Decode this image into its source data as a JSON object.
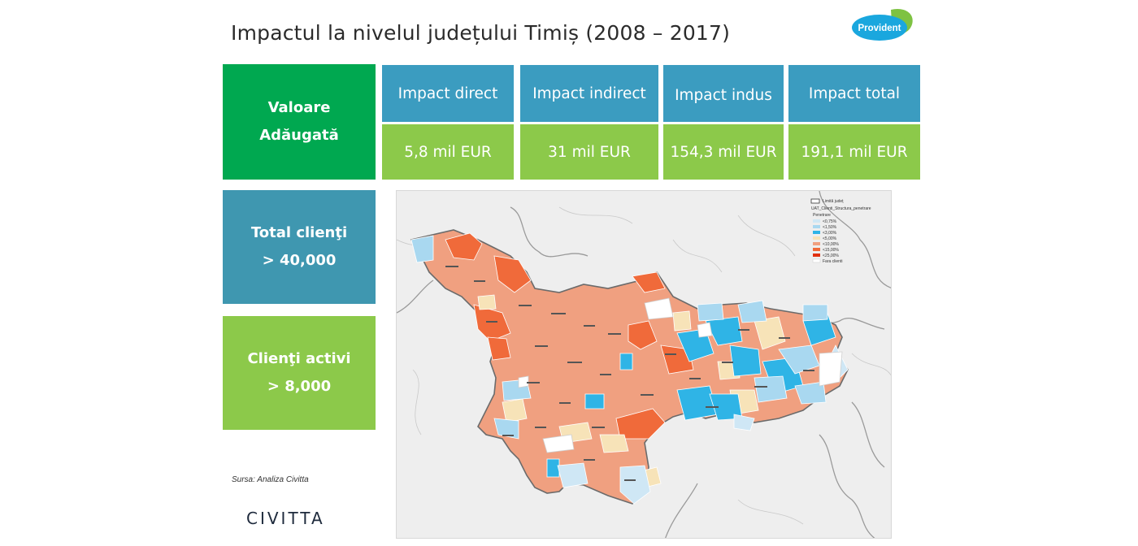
{
  "header": {
    "title": "Impactul la nivelul județului Timiș (2008 – 2017)"
  },
  "brand": {
    "provident_logo_text": "Provident",
    "civitta_logo_text": "CIVITTA"
  },
  "left_panels": [
    {
      "label_line1": "Valoare",
      "label_line2": "Adăugată",
      "color": "#00a850"
    },
    {
      "label_line1": "Total clienţi",
      "label_line2": "> 40,000",
      "color": "#3f97b0"
    },
    {
      "label_line1": "Clienţi activi",
      "label_line2": "> 8,000",
      "color": "#8cc94a"
    }
  ],
  "impact_table": {
    "headers": [
      "Impact direct",
      "Impact indirect",
      "Impact indus",
      "Impact total"
    ],
    "values": [
      "5,8 mil EUR",
      "31 mil EUR",
      "154,3 mil EUR",
      "191,1 mil EUR"
    ],
    "header_color": "#3b9cc0",
    "value_color": "#8cc94a"
  },
  "source_note": "Sursa: Analiza Civitta",
  "map": {
    "legend_title": "Limită județ",
    "legend_subtitle": "UAT_Clienti_Structura_penetrare",
    "legend_section": "Penetrare",
    "legend_items": [
      {
        "label": "<0,75%",
        "color": "#cfe7f5"
      },
      {
        "label": "<1,50%",
        "color": "#a9d8f0"
      },
      {
        "label": "<3,00%",
        "color": "#2fb4e6"
      },
      {
        "label": "<5,00%",
        "color": "#f7e3b8"
      },
      {
        "label": "<10,00%",
        "color": "#f0a080"
      },
      {
        "label": "<15,00%",
        "color": "#f06a3a"
      },
      {
        "label": "<25,00%",
        "color": "#e03010"
      },
      {
        "label": "Fara clienti",
        "color": "#ffffff"
      }
    ],
    "colors": {
      "very_light_blue": "#cfe7f5",
      "light_blue": "#a9d8f0",
      "blue": "#2fb4e6",
      "beige": "#f7e3b8",
      "salmon": "#f0a080",
      "orange": "#f06a3a",
      "white": "#ffffff"
    }
  }
}
